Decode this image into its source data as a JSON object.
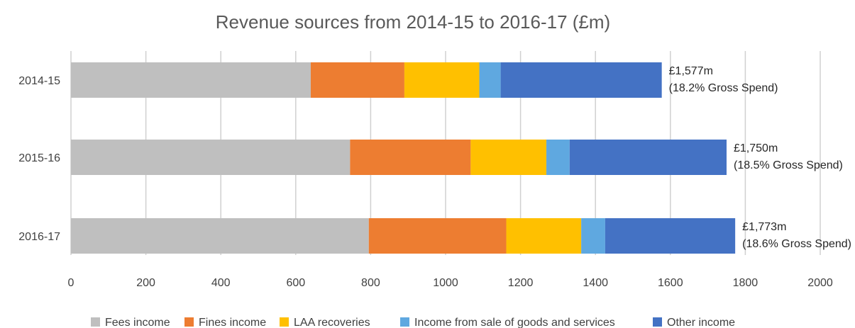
{
  "chart_data": {
    "type": "bar",
    "orientation": "horizontal",
    "stacked": true,
    "title": "Revenue sources from 2014-15 to 2016-17 (£m)",
    "categories": [
      "2014-15",
      "2015-16",
      "2016-17"
    ],
    "series": [
      {
        "name": "Fees income",
        "color": "#bfbfbf",
        "values": [
          640,
          745,
          795
        ]
      },
      {
        "name": "Fines income",
        "color": "#ed7d31",
        "values": [
          250,
          322,
          367
        ]
      },
      {
        "name": "LAA recoveries",
        "color": "#ffc000",
        "values": [
          200,
          202,
          200
        ]
      },
      {
        "name": "Income from sale of goods and services",
        "color": "#5fa8e0",
        "values": [
          57,
          62,
          64
        ]
      },
      {
        "name": "Other income",
        "color": "#4472c4",
        "values": [
          430,
          419,
          347
        ]
      }
    ],
    "annotations": [
      {
        "category": "2014-15",
        "lines": [
          "£1,577m",
          "(18.2% Gross Spend)"
        ]
      },
      {
        "category": "2015-16",
        "lines": [
          "£1,750m",
          "(18.5% Gross Spend)"
        ]
      },
      {
        "category": "2016-17",
        "lines": [
          "£1,773m",
          "(18.6% Gross Spend)"
        ]
      }
    ],
    "xlim": [
      0,
      2000
    ],
    "xticks": [
      0,
      200,
      400,
      600,
      800,
      1000,
      1200,
      1400,
      1600,
      1800,
      2000
    ],
    "grid": true,
    "legend_position": "bottom"
  }
}
